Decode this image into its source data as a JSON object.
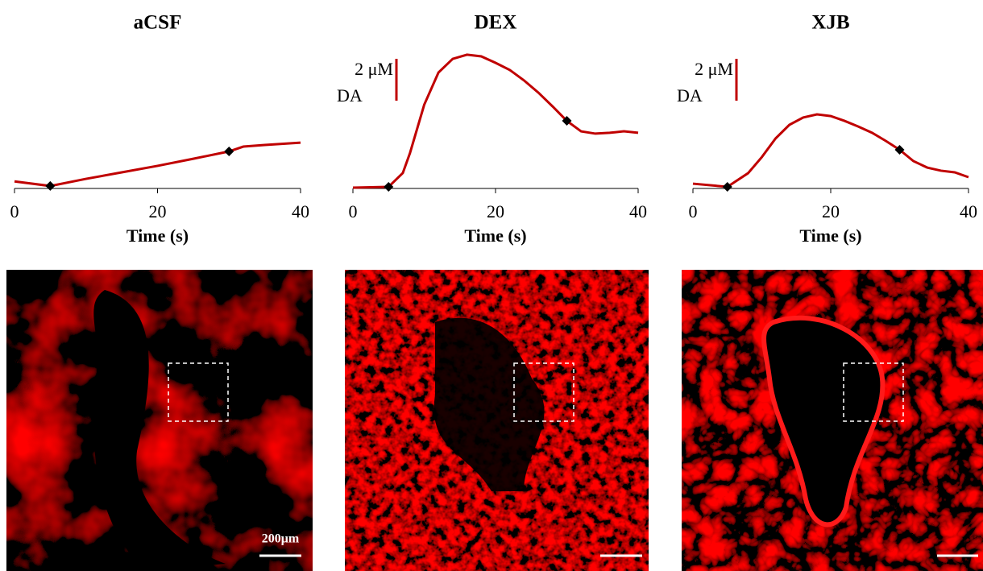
{
  "chart_data": [
    {
      "type": "line",
      "title": "aCSF",
      "x_label": "Time (s)",
      "x": [
        0,
        5,
        10,
        15,
        20,
        25,
        30,
        32,
        35,
        40
      ],
      "series": [
        {
          "color": "#c00000",
          "values": [
            0.3,
            0.08,
            0.42,
            0.73,
            1.04,
            1.38,
            1.73,
            1.96,
            2.04,
            2.15
          ]
        }
      ],
      "xlim": [
        0,
        40
      ],
      "xticks": [
        0,
        20,
        40
      ],
      "ylim": [
        0,
        7
      ],
      "marker_x": [
        5,
        30
      ]
    },
    {
      "type": "line",
      "title": "DEX",
      "x_label": "Time (s)",
      "x": [
        0,
        5,
        7,
        8,
        10,
        12,
        14,
        16,
        18,
        20,
        22,
        24,
        26,
        28,
        30,
        32,
        34,
        36,
        38,
        40
      ],
      "series": [
        {
          "color": "#c00000",
          "values": [
            0,
            0.04,
            0.7,
            1.65,
            3.96,
            5.5,
            6.15,
            6.35,
            6.27,
            5.96,
            5.62,
            5.12,
            4.54,
            3.88,
            3.19,
            2.69,
            2.58,
            2.62,
            2.69,
            2.62
          ]
        }
      ],
      "xlim": [
        0,
        40
      ],
      "xticks": [
        0,
        20,
        40
      ],
      "ylim": [
        0,
        7
      ],
      "marker_x": [
        5,
        30
      ],
      "scale_bar": {
        "value": 2,
        "label": "2 μM"
      },
      "scale_bar_annotation": "DA"
    },
    {
      "type": "line",
      "title": "XJB",
      "x_label": "Time (s)",
      "x": [
        0,
        5,
        8,
        10,
        12,
        14,
        16,
        18,
        20,
        22,
        24,
        26,
        28,
        30,
        32,
        34,
        36,
        38,
        40
      ],
      "series": [
        {
          "color": "#c00000",
          "values": [
            0.19,
            0.04,
            0.69,
            1.46,
            2.35,
            3.0,
            3.35,
            3.5,
            3.42,
            3.19,
            2.92,
            2.62,
            2.23,
            1.81,
            1.27,
            0.96,
            0.81,
            0.73,
            0.5
          ]
        }
      ],
      "xlim": [
        0,
        40
      ],
      "xticks": [
        0,
        20,
        40
      ],
      "ylim": [
        0,
        7
      ],
      "marker_x": [
        5,
        30
      ],
      "scale_bar": {
        "value": 2,
        "label": "2 μM"
      },
      "scale_bar_annotation": "DA"
    }
  ],
  "images": {
    "scale_bar_label": "200μm"
  }
}
